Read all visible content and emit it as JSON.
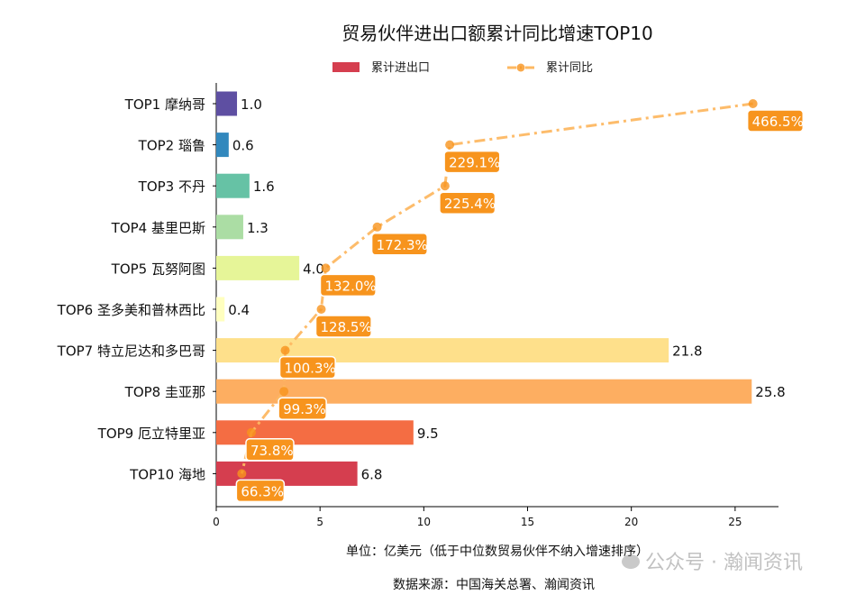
{
  "chart_data": {
    "type": "bar",
    "orientation": "horizontal",
    "title": "贸易伙伴进出口额累计同比增速TOP10",
    "categories": [
      "TOP1 摩纳哥",
      "TOP2 瑙鲁",
      "TOP3 不丹",
      "TOP4 基里巴斯",
      "TOP5 瓦努阿图",
      "TOP6 圣多美和普林西比",
      "TOP7 特立尼达和多巴哥",
      "TOP8 圭亚那",
      "TOP9 厄立特里亚",
      "TOP10 海地"
    ],
    "series": [
      {
        "name": "累计进出口",
        "type": "bar",
        "values": [
          1.0,
          0.6,
          1.6,
          1.3,
          4.0,
          0.4,
          21.8,
          25.8,
          9.5,
          6.8
        ],
        "labels": [
          "1.0",
          "0.6",
          "1.6",
          "1.3",
          "4.0",
          "0.4",
          "21.8",
          "25.8",
          "9.5",
          "6.8"
        ]
      },
      {
        "name": "累计同比",
        "type": "line",
        "values": [
          466.5,
          229.1,
          225.4,
          172.3,
          132.0,
          128.5,
          100.3,
          99.3,
          73.8,
          66.3
        ],
        "labels": [
          "466.5%",
          "229.1%",
          "225.4%",
          "172.3%",
          "132.0%",
          "128.5%",
          "100.3%",
          "99.3%",
          "73.8%",
          "66.3%"
        ]
      }
    ],
    "xlim": [
      0,
      27.09
    ],
    "xlim_secondary": [
      46.3,
      486.5
    ],
    "xticks": [
      "0",
      "5",
      "10",
      "15",
      "20",
      "25"
    ],
    "xlabel": "单位：亿美元（低于中位数贸易伙伴不纳入增速排序）",
    "source": "数据来源：中国海关总署、瀚闻资讯",
    "legend_position": "top-center",
    "grid": false,
    "colors": {
      "bars": [
        "#5e4fa2",
        "#3288bd",
        "#66c2a5",
        "#abdda4",
        "#e6f598",
        "#ffffbf",
        "#fee08b",
        "#fdae61",
        "#f46d43",
        "#d53e4f"
      ],
      "line": "#fdb863",
      "marker": "#f7941d",
      "label_box": "#f7941d"
    }
  },
  "watermark": "公众号 · 瀚闻资讯"
}
